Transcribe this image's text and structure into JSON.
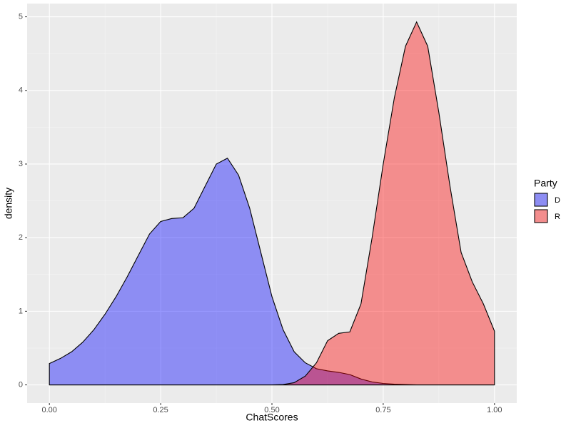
{
  "chart_data": {
    "type": "density",
    "x_label": "ChatScores",
    "y_label": "density",
    "legend_title": "Party",
    "legend_position": "right",
    "x": [
      0,
      0.025,
      0.05,
      0.075,
      0.1,
      0.125,
      0.15,
      0.175,
      0.2,
      0.225,
      0.25,
      0.275,
      0.3,
      0.325,
      0.35,
      0.375,
      0.4,
      0.425,
      0.45,
      0.475,
      0.5,
      0.525,
      0.55,
      0.575,
      0.6,
      0.625,
      0.65,
      0.675,
      0.7,
      0.725,
      0.75,
      0.775,
      0.8,
      0.825,
      0.85,
      0.875,
      0.9,
      0.925,
      0.95,
      0.975,
      1.0
    ],
    "series": [
      {
        "name": "D",
        "color": "#0000ff",
        "values": [
          0.29,
          0.36,
          0.45,
          0.58,
          0.75,
          0.96,
          1.2,
          1.47,
          1.76,
          2.05,
          2.22,
          2.26,
          2.27,
          2.4,
          2.7,
          3.0,
          3.08,
          2.85,
          2.4,
          1.8,
          1.2,
          0.75,
          0.45,
          0.3,
          0.22,
          0.19,
          0.17,
          0.14,
          0.08,
          0.04,
          0.02,
          0.01,
          0.005,
          0,
          0,
          0,
          0,
          0,
          0,
          0,
          0
        ]
      },
      {
        "name": "R",
        "color": "#ff0000",
        "values": [
          0,
          0,
          0,
          0,
          0,
          0,
          0,
          0,
          0,
          0,
          0,
          0,
          0,
          0,
          0,
          0,
          0,
          0,
          0,
          0,
          0,
          0.005,
          0.03,
          0.12,
          0.3,
          0.6,
          0.7,
          0.72,
          1.1,
          2.0,
          3.0,
          3.9,
          4.6,
          4.93,
          4.6,
          3.7,
          2.7,
          1.8,
          1.4,
          1.1,
          0.73
        ]
      }
    ],
    "fill_alpha": 0.4,
    "xlim": [
      -0.05,
      1.05
    ],
    "ylim": [
      -0.2465,
      5.18
    ],
    "xticks": [
      {
        "value": 0,
        "label": "0.00"
      },
      {
        "value": 0.25,
        "label": "0.25"
      },
      {
        "value": 0.5,
        "label": "0.50"
      },
      {
        "value": 0.75,
        "label": "0.75"
      },
      {
        "value": 1,
        "label": "1.00"
      }
    ],
    "yticks": [
      0,
      1,
      2,
      3,
      4,
      5
    ],
    "grid": true
  }
}
